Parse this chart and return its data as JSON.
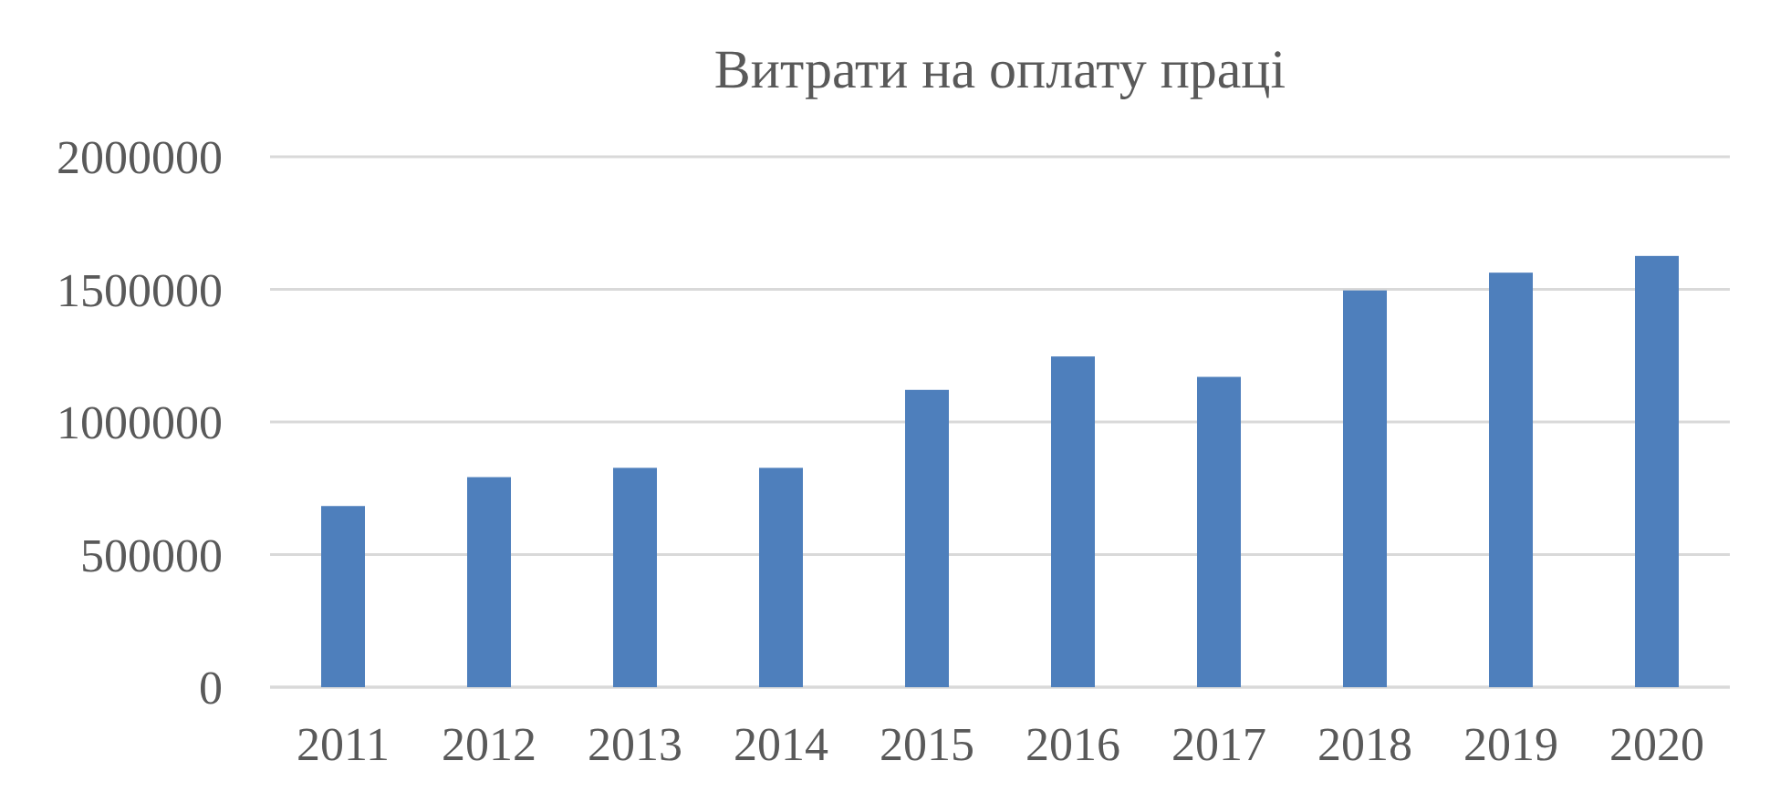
{
  "chart_data": {
    "type": "bar",
    "title": "Витрати на оплату праці",
    "categories": [
      "2011",
      "2012",
      "2013",
      "2014",
      "2015",
      "2016",
      "2017",
      "2018",
      "2019",
      "2020"
    ],
    "values": [
      683000,
      792000,
      827000,
      827000,
      1121000,
      1247000,
      1170000,
      1496000,
      1563000,
      1626000
    ],
    "color": "#4e7fbc",
    "ylim": [
      0,
      2000000
    ],
    "yticks": [
      0,
      500000,
      1000000,
      1500000,
      2000000
    ],
    "grid": "y"
  }
}
